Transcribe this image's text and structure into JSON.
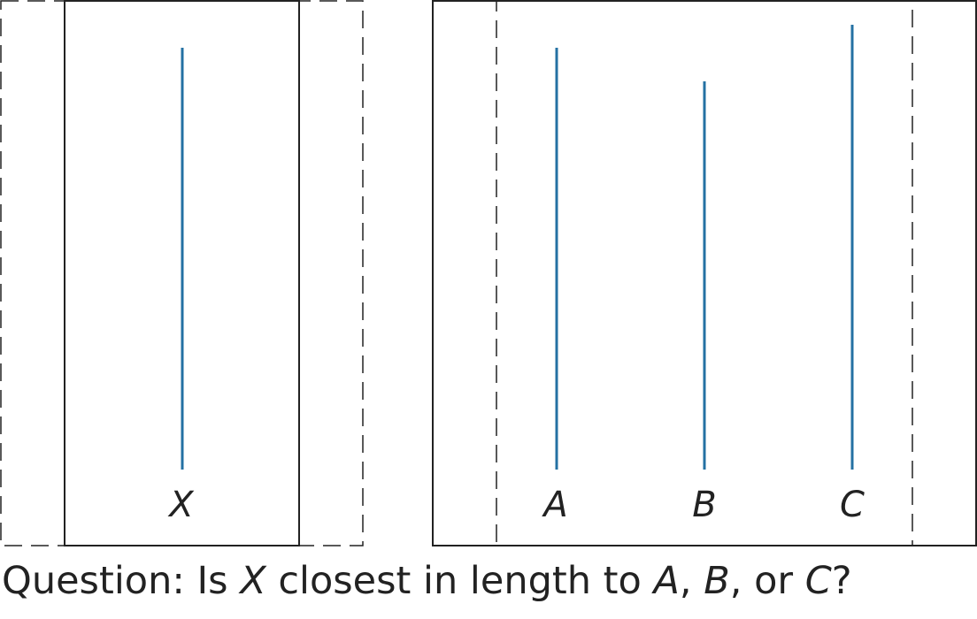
{
  "colors": {
    "segment": "#2471a3",
    "frame": "#222222"
  },
  "reference": {
    "label": "X"
  },
  "choices": [
    {
      "label": "A"
    },
    {
      "label": "B"
    },
    {
      "label": "C"
    }
  ],
  "question": {
    "prefix": "Question: Is ",
    "subject": "X",
    "middle": " closest in length to ",
    "a": "A",
    "sep1": ", ",
    "b": "B",
    "sep2": ", or ",
    "c": "C",
    "suffix": "?"
  }
}
